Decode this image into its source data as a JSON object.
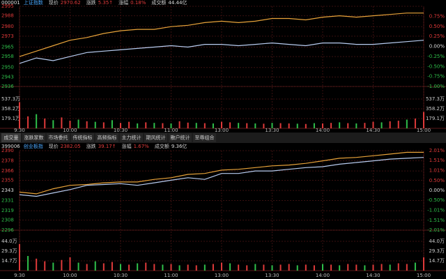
{
  "tabs": [
    "成交量",
    "涨跌家数",
    "市场委托",
    "传统指标",
    "高频指标",
    "主力统计",
    "期风统计",
    "散户统计",
    "至尊组合"
  ],
  "chart_data": [
    {
      "type": "line",
      "code": "000001",
      "name": "上证指数",
      "quote": [
        {
          "label": "现价",
          "value": "2970.62"
        },
        {
          "label": "涨跌",
          "value": "5.35↑"
        },
        {
          "label": "涨幅",
          "value": "0.18%"
        },
        {
          "label": "成交额",
          "value": "44.44亿"
        }
      ],
      "xlim": [
        0,
        240
      ],
      "xticks": [
        {
          "value": 0,
          "label": "9:30"
        },
        {
          "value": 30,
          "label": "10:00"
        },
        {
          "value": 60,
          "label": "10:30"
        },
        {
          "value": 90,
          "label": "11:00"
        },
        {
          "value": 120,
          "label": "13:00"
        },
        {
          "value": 150,
          "label": "13:30"
        },
        {
          "value": 180,
          "label": "14:00"
        },
        {
          "value": 210,
          "label": "14:30"
        },
        {
          "value": 240,
          "label": "15:00"
        }
      ],
      "ylim": [
        2936,
        2995
      ],
      "yticks": [
        2995,
        2988,
        2980,
        2973,
        2965,
        2958,
        2950,
        2943,
        2936
      ],
      "y2lim": [
        -1,
        1
      ],
      "y2ticks": [
        {
          "value": 0.75,
          "label": "0.75%"
        },
        {
          "value": 0.5,
          "label": "0.50%"
        },
        {
          "value": 0.25,
          "label": "0.25%"
        },
        {
          "value": 0,
          "label": "0.00%"
        },
        {
          "value": -0.25,
          "label": "-0.25%"
        },
        {
          "value": -0.5,
          "label": "-0.50%"
        },
        {
          "value": -0.75,
          "label": "-0.75%"
        },
        {
          "value": -1,
          "label": "-1.00%"
        }
      ],
      "x": [
        0,
        10,
        20,
        30,
        40,
        50,
        60,
        70,
        80,
        90,
        100,
        110,
        120,
        130,
        140,
        150,
        160,
        170,
        180,
        190,
        200,
        210,
        220,
        230,
        240
      ],
      "series": [
        {
          "color": "#e8a33a",
          "values": [
            2958,
            2962,
            2966,
            2970,
            2972,
            2975,
            2977,
            2978,
            2978,
            2980,
            2981,
            2983,
            2984,
            2983,
            2984,
            2986,
            2986,
            2985,
            2987,
            2988,
            2987,
            2988,
            2989,
            2990,
            2990
          ]
        },
        {
          "color": "#b8ccf0",
          "values": [
            2953,
            2957,
            2955,
            2958,
            2961,
            2962,
            2963,
            2964,
            2965,
            2966,
            2965,
            2967,
            2967,
            2966,
            2967,
            2968,
            2967,
            2966,
            2968,
            2968,
            2967,
            2967,
            2968,
            2969,
            2970
          ]
        }
      ],
      "volume": {
        "ylim": [
          0,
          716.4
        ],
        "yticks": [
          {
            "value": 537.3,
            "label": "537.3万"
          },
          {
            "value": 358.2,
            "label": "358.2万"
          },
          {
            "value": 179.1,
            "label": "179.1万"
          }
        ],
        "x": [
          0,
          5,
          10,
          15,
          20,
          25,
          30,
          35,
          40,
          45,
          50,
          55,
          60,
          65,
          70,
          75,
          80,
          85,
          90,
          95,
          100,
          105,
          110,
          115,
          120,
          125,
          130,
          135,
          140,
          145,
          150,
          155,
          160,
          165,
          170,
          175,
          180,
          185,
          190,
          195,
          200,
          205,
          210,
          215,
          220,
          225,
          230,
          235,
          240
        ],
        "values": [
          480,
          220,
          260,
          180,
          150,
          200,
          140,
          160,
          130,
          120,
          110,
          150,
          100,
          120,
          90,
          110,
          100,
          95,
          90,
          130,
          105,
          100,
          95,
          90,
          120,
          110,
          100,
          95,
          90,
          85,
          100,
          95,
          90,
          85,
          80,
          95,
          90,
          100,
          110,
          95,
          90,
          100,
          120,
          110,
          130,
          140,
          160,
          180,
          300
        ],
        "up": [
          true,
          true,
          false,
          true,
          false,
          true,
          true,
          false,
          true,
          false,
          true,
          false,
          true,
          true,
          false,
          true,
          false,
          true,
          false,
          true,
          true,
          false,
          true,
          false,
          true,
          true,
          false,
          true,
          false,
          true,
          false,
          true,
          true,
          false,
          true,
          false,
          true,
          true,
          false,
          true,
          false,
          true,
          true,
          false,
          true,
          true,
          false,
          true,
          true
        ]
      }
    },
    {
      "type": "line",
      "code": "399006",
      "name": "创业板指",
      "quote": [
        {
          "label": "现价",
          "value": "2382.05"
        },
        {
          "label": "涨跌",
          "value": "39.17↑"
        },
        {
          "label": "涨幅",
          "value": "1.67%"
        },
        {
          "label": "成交额",
          "value": "9.36亿"
        }
      ],
      "xlim": [
        0,
        240
      ],
      "xticks": [
        {
          "value": 0,
          "label": "9:30"
        },
        {
          "value": 30,
          "label": "10:00"
        },
        {
          "value": 60,
          "label": "10:30"
        },
        {
          "value": 90,
          "label": "11:00"
        },
        {
          "value": 120,
          "label": "13:00"
        },
        {
          "value": 150,
          "label": "13:30"
        },
        {
          "value": 180,
          "label": "14:00"
        },
        {
          "value": 210,
          "label": "14:30"
        },
        {
          "value": 240,
          "label": "15:00"
        }
      ],
      "ylim": [
        2296,
        2390
      ],
      "yticks": [
        2390,
        2378,
        2366,
        2355,
        2343,
        2331,
        2319,
        2308,
        2296
      ],
      "y2lim": [
        -2.01,
        2.01
      ],
      "y2ticks": [
        {
          "value": 2.01,
          "label": "2.01%"
        },
        {
          "value": 1.51,
          "label": "1.51%"
        },
        {
          "value": 1.01,
          "label": "1.01%"
        },
        {
          "value": 0.5,
          "label": "0.50%"
        },
        {
          "value": 0,
          "label": "0.00%"
        },
        {
          "value": -0.5,
          "label": "-0.50%"
        },
        {
          "value": -1.01,
          "label": "-1.01%"
        },
        {
          "value": -1.51,
          "label": "-1.51%"
        },
        {
          "value": -2.01,
          "label": "-2.01%"
        }
      ],
      "x": [
        0,
        10,
        20,
        30,
        40,
        50,
        60,
        70,
        80,
        90,
        100,
        110,
        120,
        130,
        140,
        150,
        160,
        170,
        180,
        190,
        200,
        210,
        220,
        230,
        240
      ],
      "series": [
        {
          "color": "#e8a33a",
          "values": [
            2341,
            2339,
            2345,
            2349,
            2350,
            2352,
            2353,
            2353,
            2356,
            2358,
            2362,
            2363,
            2367,
            2368,
            2370,
            2372,
            2373,
            2375,
            2378,
            2381,
            2382,
            2384,
            2386,
            2388,
            2388
          ]
        },
        {
          "color": "#b8ccf0",
          "values": [
            2338,
            2336,
            2340,
            2344,
            2349,
            2350,
            2351,
            2349,
            2352,
            2355,
            2358,
            2356,
            2363,
            2363,
            2366,
            2366,
            2368,
            2370,
            2371,
            2374,
            2376,
            2378,
            2380,
            2381,
            2382
          ]
        }
      ],
      "volume": {
        "ylim": [
          0,
          58.7
        ],
        "yticks": [
          {
            "value": 44.0,
            "label": "44.0万"
          },
          {
            "value": 29.3,
            "label": "29.3万"
          },
          {
            "value": 14.7,
            "label": "14.7万"
          }
        ],
        "x": [
          0,
          5,
          10,
          15,
          20,
          25,
          30,
          35,
          40,
          45,
          50,
          55,
          60,
          65,
          70,
          75,
          80,
          85,
          90,
          95,
          100,
          105,
          110,
          115,
          120,
          125,
          130,
          135,
          140,
          145,
          150,
          155,
          160,
          165,
          170,
          175,
          180,
          185,
          190,
          195,
          200,
          205,
          210,
          215,
          220,
          225,
          230,
          235,
          240
        ],
        "values": [
          40,
          22,
          18,
          14,
          12,
          16,
          20,
          12,
          10,
          14,
          11,
          13,
          10,
          9,
          11,
          12,
          10,
          9,
          10,
          8,
          9,
          8,
          9,
          10,
          12,
          11,
          9,
          8,
          10,
          9,
          8,
          9,
          10,
          8,
          9,
          8,
          10,
          9,
          8,
          10,
          9,
          8,
          9,
          10,
          9,
          11,
          10,
          12,
          20
        ],
        "up": [
          true,
          false,
          true,
          true,
          false,
          true,
          true,
          false,
          true,
          false,
          true,
          true,
          false,
          true,
          false,
          true,
          true,
          false,
          true,
          false,
          true,
          true,
          false,
          true,
          true,
          false,
          true,
          true,
          false,
          true,
          false,
          true,
          true,
          false,
          true,
          true,
          false,
          true,
          false,
          true,
          true,
          false,
          true,
          true,
          false,
          true,
          true,
          false,
          true
        ]
      }
    }
  ]
}
